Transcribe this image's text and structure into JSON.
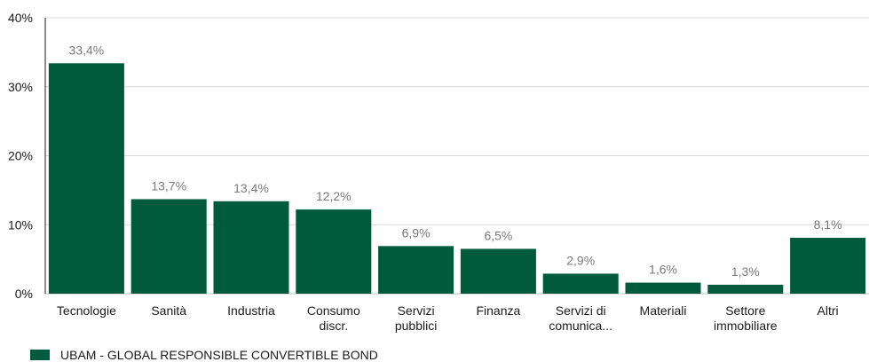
{
  "chart_data": {
    "type": "bar",
    "categories": [
      [
        "Tecnologie"
      ],
      [
        "Sanità"
      ],
      [
        "Industria"
      ],
      [
        "Consumo",
        "discr."
      ],
      [
        "Servizi",
        "pubblici"
      ],
      [
        "Finanza"
      ],
      [
        "Servizi di",
        "comunica..."
      ],
      [
        "Materiali"
      ],
      [
        "Settore",
        "immobiliare"
      ],
      [
        "Altri"
      ]
    ],
    "series": [
      {
        "name": "UBAM - GLOBAL RESPONSIBLE CONVERTIBLE BOND",
        "values": [
          33.4,
          13.7,
          13.4,
          12.2,
          6.9,
          6.5,
          2.9,
          1.6,
          1.3,
          8.1
        ],
        "data_labels": [
          "33,4%",
          "13,7%",
          "13,4%",
          "12,2%",
          "6,9%",
          "6,5%",
          "2,9%",
          "1,6%",
          "1,3%",
          "8,1%"
        ]
      }
    ],
    "ylim": [
      0,
      40
    ],
    "yticks": [
      0,
      10,
      20,
      30,
      40
    ],
    "ytick_labels": [
      "0%",
      "10%",
      "20%",
      "30%",
      "40%"
    ],
    "grid": true,
    "legend_position": "bottom-left",
    "colors": {
      "bar": "#005a3c",
      "grid": "#d9d9d9",
      "axis": "#1a1a1a",
      "data_label": "#7a7a7a"
    }
  }
}
